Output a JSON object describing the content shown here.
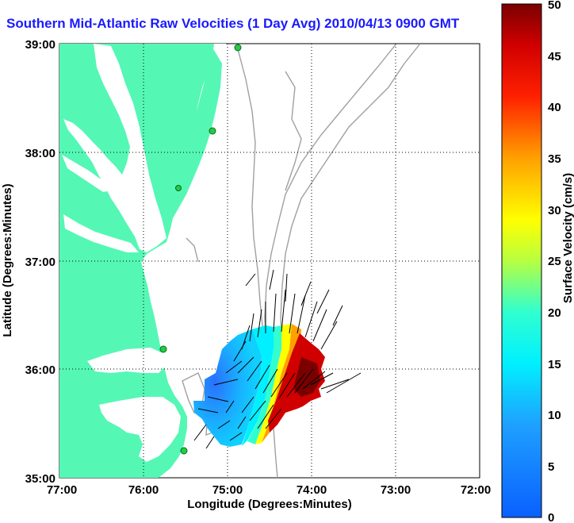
{
  "title": "Southern Mid-Atlantic Raw Velocities (1 Day Avg) 2010/04/13 0900 GMT",
  "map": {
    "xlabel": "Longitude (Degrees:Minutes)",
    "ylabel": "Latitude (Degrees:Minutes)",
    "x_ticks": [
      "77:00",
      "76:00",
      "75:00",
      "74:00",
      "73:00",
      "72:00"
    ],
    "y_ticks": [
      "39:00",
      "38:00",
      "37:00",
      "36:00",
      "35:00"
    ],
    "land_color": "#55f7b5",
    "grid": "dotted"
  },
  "colorbar": {
    "label": "Surface Velocity (cm/s)",
    "ticks": [
      "50",
      "45",
      "40",
      "35",
      "30",
      "25",
      "20",
      "15",
      "10",
      "5",
      "0"
    ],
    "min": 0,
    "max": 50,
    "colormap": "jet"
  },
  "stations": [
    "station-1",
    "station-2",
    "station-3",
    "station-4",
    "station-5"
  ],
  "icons": {
    "station": "green-circle-icon",
    "vector": "arrow-icon"
  }
}
